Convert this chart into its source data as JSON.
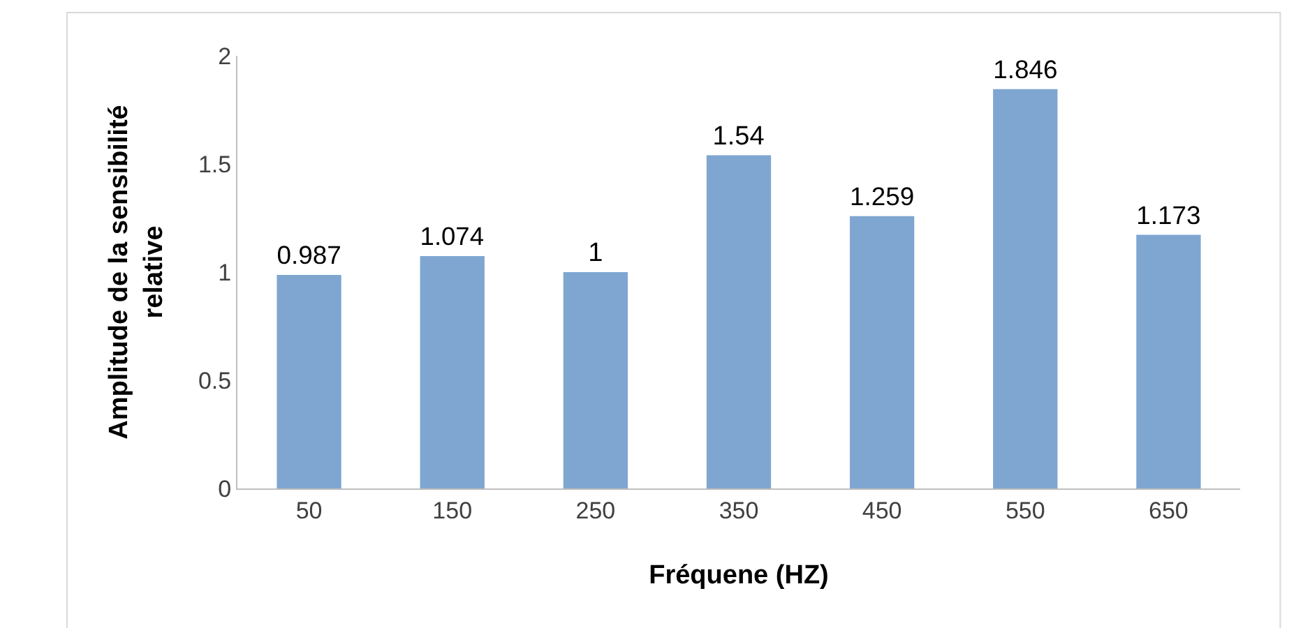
{
  "chart_data": {
    "type": "bar",
    "xlabel": "Fréquene (HZ)",
    "ylabel": "Amplitude de la sensibilité relative",
    "categories": [
      "50",
      "150",
      "250",
      "350",
      "450",
      "550",
      "650"
    ],
    "values": [
      0.987,
      1.074,
      1,
      1.54,
      1.259,
      1.846,
      1.173
    ],
    "color": "#7fa6d1",
    "ylim": [
      0,
      2
    ],
    "yticks": [
      0,
      0.5,
      1,
      1.5,
      2
    ],
    "data_labels": true
  }
}
